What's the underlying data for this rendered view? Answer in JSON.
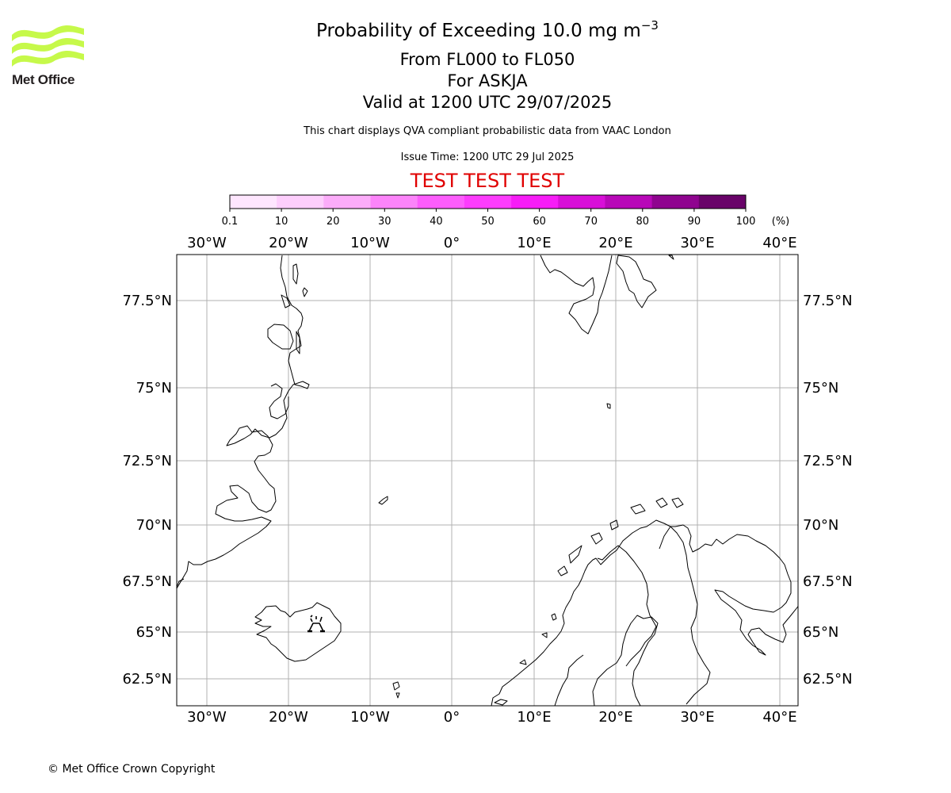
{
  "logo": {
    "name": "Met Office",
    "colors": {
      "waves": "#c6f94a",
      "text": "#231f20"
    }
  },
  "title": {
    "line1": "Probability of Exceeding 10.0 mg m",
    "line1_exp": "−3",
    "line2": "From FL000 to FL050",
    "line3": "For ASKJA",
    "line4": "Valid at 1200 UTC 29/07/2025"
  },
  "subtitle": "This chart displays QVA compliant probabilistic data from VAAC London",
  "issue_time": "Issue Time: 1200 UTC 29 Jul 2025",
  "test_banner": "TEST TEST TEST",
  "copyright": "© Met Office Crown Copyright",
  "colorbar": {
    "ticks": [
      "0.1",
      "10",
      "20",
      "30",
      "40",
      "50",
      "60",
      "70",
      "80",
      "90",
      "100"
    ],
    "unit": "(%)",
    "colors": [
      "#fee6fe",
      "#fdcefc",
      "#fbacf9",
      "#fc84fa",
      "#fd5dfc",
      "#fd3cfd",
      "#f71df7",
      "#d80fd8",
      "#b808b8",
      "#8f048f",
      "#690369"
    ]
  },
  "map": {
    "lon_labels": [
      "30°W",
      "20°W",
      "10°W",
      "0°",
      "10°E",
      "20°E",
      "30°E",
      "40°E"
    ],
    "lat_labels": [
      "77.5°N",
      "75°N",
      "72.5°N",
      "70°N",
      "67.5°N",
      "65°N",
      "62.5°N"
    ],
    "volcano": {
      "name": "ASKJA",
      "icon": "volcano-icon"
    },
    "colors": {
      "grid": "#b0b0b0",
      "coast": "#000000"
    }
  }
}
